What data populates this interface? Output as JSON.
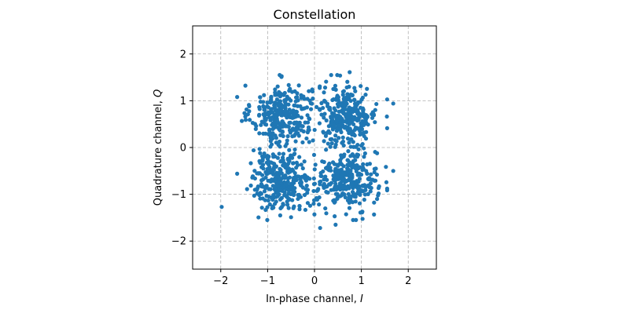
{
  "chart_data": {
    "type": "scatter",
    "title": "Constellation",
    "xlabel": "In-phase channel,",
    "xlabel_symbol": "I",
    "ylabel": "Quadrature channel,",
    "ylabel_symbol": "Q",
    "xlim": [
      -2.6,
      2.6
    ],
    "ylim": [
      -2.6,
      2.6
    ],
    "xticks": [
      -2,
      -1,
      0,
      1,
      2
    ],
    "yticks": [
      -2,
      -1,
      0,
      1,
      2
    ],
    "xtick_labels": [
      "−2",
      "−1",
      "0",
      "1",
      "2"
    ],
    "ytick_labels": [
      "−2",
      "−1",
      "0",
      "1",
      "2"
    ],
    "grid": true,
    "grid_style": "dashed",
    "marker_color": "#1f77b4",
    "clusters": [
      {
        "center": [
          -0.7,
          0.7
        ],
        "spread": 0.32,
        "count": 300
      },
      {
        "center": [
          0.7,
          0.7
        ],
        "spread": 0.32,
        "count": 300
      },
      {
        "center": [
          -0.7,
          -0.7
        ],
        "spread": 0.32,
        "count": 300
      },
      {
        "center": [
          0.7,
          -0.7
        ],
        "spread": 0.32,
        "count": 300
      }
    ],
    "points": [
      [
        -1.98,
        -1.27
      ],
      [
        1.68,
        0.94
      ],
      [
        1.68,
        -0.5
      ],
      [
        -1.65,
        1.08
      ],
      [
        0.75,
        1.61
      ],
      [
        0.12,
        -1.72
      ],
      [
        -1.3,
        -0.06
      ],
      [
        0.98,
        -1.39
      ],
      [
        -0.5,
        -1.49
      ],
      [
        1.32,
        0.93
      ],
      [
        -1.65,
        -0.56
      ],
      [
        0.45,
        -1.65
      ]
    ]
  }
}
